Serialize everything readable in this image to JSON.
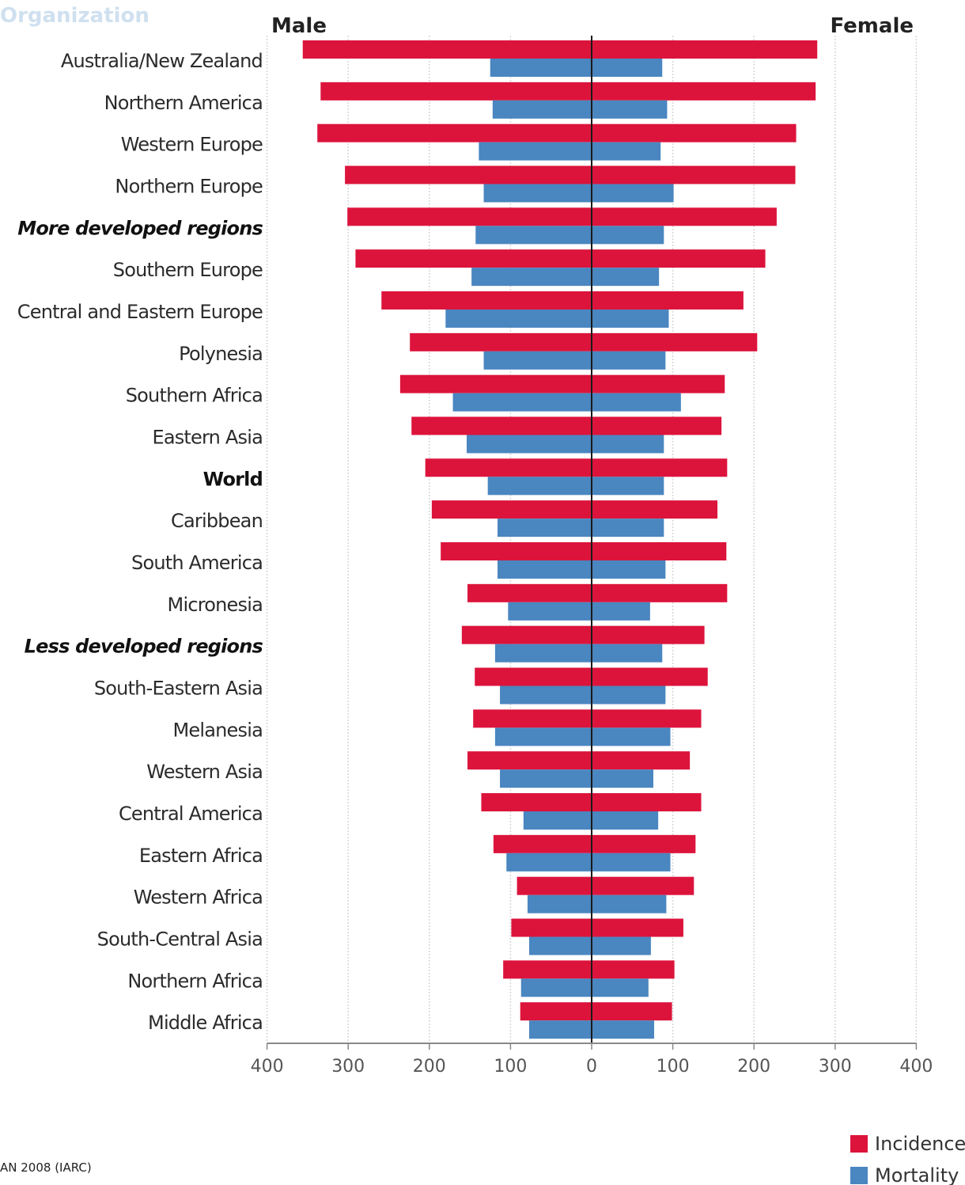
{
  "header": {
    "org_fragment": "Organization"
  },
  "source_fragment": "AN 2008 (IARC)",
  "chart_data": {
    "type": "bar",
    "orientation": "horizontal-butterfly",
    "left_label": "Male",
    "right_label": "Female",
    "xlim": [
      -400,
      400
    ],
    "xticks": [
      -400,
      -300,
      -200,
      -100,
      0,
      100,
      200,
      300,
      400
    ],
    "xtick_labels": [
      "400",
      "300",
      "200",
      "100",
      "0",
      "100",
      "200",
      "300",
      "400"
    ],
    "grid": true,
    "legend_position": "bottom-right",
    "categories": [
      "Australia/New Zealand",
      "Northern America",
      "Western Europe",
      "Northern Europe",
      "More developed regions",
      "Southern Europe",
      "Central and Eastern Europe",
      "Polynesia",
      "Southern Africa",
      "Eastern Asia",
      "World",
      "Caribbean",
      "South America",
      "Micronesia",
      "Less developed regions",
      "South-Eastern Asia",
      "Melanesia",
      "Western Asia",
      "Central America",
      "Eastern Africa",
      "Western Africa",
      "South-Central Asia",
      "Northern Africa",
      "Middle Africa"
    ],
    "category_styles": {
      "More developed regions": "bolditalic",
      "World": "bold",
      "Less developed regions": "bolditalic"
    },
    "series": [
      {
        "name": "Incidence",
        "color": "#dc143c",
        "male": [
          356,
          334,
          338,
          304,
          301,
          291,
          259,
          224,
          236,
          222,
          205,
          197,
          186,
          153,
          160,
          144,
          146,
          153,
          136,
          121,
          92,
          99,
          109,
          88
        ],
        "female": [
          278,
          276,
          252,
          251,
          228,
          214,
          187,
          204,
          164,
          160,
          167,
          155,
          166,
          167,
          139,
          143,
          135,
          121,
          135,
          128,
          126,
          113,
          102,
          99
        ]
      },
      {
        "name": "Mortality",
        "color": "#4a86c0",
        "male": [
          125,
          122,
          139,
          133,
          143,
          148,
          180,
          133,
          171,
          154,
          128,
          116,
          116,
          103,
          119,
          113,
          119,
          113,
          84,
          105,
          79,
          77,
          87,
          77
        ],
        "female": [
          87,
          93,
          85,
          101,
          89,
          83,
          95,
          91,
          110,
          89,
          89,
          89,
          91,
          72,
          87,
          91,
          97,
          76,
          82,
          97,
          92,
          73,
          70,
          77
        ]
      }
    ]
  }
}
